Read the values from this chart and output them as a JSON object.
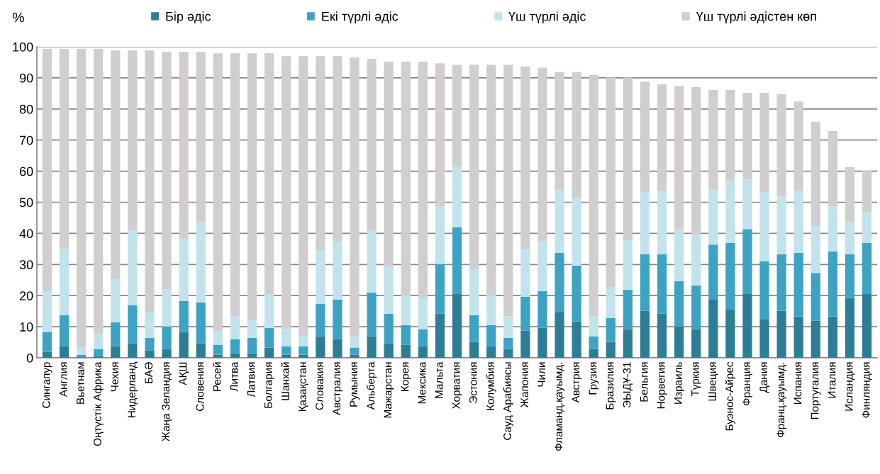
{
  "chart_data": {
    "type": "bar",
    "stacked": true,
    "ylabel": "%",
    "categories": [
      "Сингапур",
      "Англия",
      "Вьетнам",
      "Оңтүстік Африка",
      "Чехия",
      "Нидерланд",
      "БАӘ",
      "Жаңа Зеландия",
      "АҚШ",
      "Словения",
      "Ресей",
      "Литва",
      "Латвия",
      "Болгария",
      "Шанхай",
      "Қазақстан",
      "Словакия",
      "Австралия",
      "Румыния",
      "Альберта",
      "Мажарстан",
      "Корея",
      "Мексика",
      "Мальта",
      "Хорватия",
      "Эстония",
      "Колумбия",
      "Сауд Арабиясы",
      "Жапония",
      "Чили",
      "Фламанд.қауымд.",
      "Австрия",
      "Грузия",
      "Бразилия",
      "ЭЫДҰ-31",
      "Бельгия",
      "Норвегия",
      "Израиль",
      "Түркия",
      "Швеция",
      "Буэнос-Айрес",
      "Франция",
      "Дания",
      "Франц.қауымд.",
      "Испания",
      "Португалия",
      "Италия",
      "Исландия",
      "Финляндия"
    ],
    "series": [
      {
        "name": "Бір әдіс",
        "color": "#2e7d96",
        "values": [
          1.9,
          3.7,
          0.2,
          0.5,
          3.7,
          4.6,
          2.3,
          2.8,
          8.3,
          4.6,
          1.0,
          1.4,
          1.4,
          3.3,
          1.0,
          1.0,
          6.9,
          6.0,
          1.0,
          6.9,
          4.6,
          4.2,
          3.7,
          14.2,
          20.5,
          5.1,
          3.7,
          2.8,
          8.7,
          9.6,
          14.6,
          11.4,
          2.8,
          5.1,
          9.2,
          15.1,
          14.2,
          10.1,
          9.2,
          18.7,
          15.5,
          20.5,
          12.3,
          15.1,
          13.3,
          11.9,
          13.3,
          19.2,
          20.5
        ]
      },
      {
        "name": "Екі түрлі әдіс",
        "color": "#3ca3c4",
        "values": [
          6.4,
          10.0,
          0.8,
          2.3,
          7.7,
          12.3,
          4.1,
          7.3,
          10.0,
          13.2,
          3.2,
          4.6,
          5.0,
          6.3,
          2.7,
          2.7,
          10.4,
          12.7,
          2.3,
          14.1,
          9.6,
          6.3,
          5.5,
          15.9,
          21.4,
          8.6,
          6.8,
          3.6,
          10.9,
          11.8,
          19.1,
          18.2,
          4.1,
          7.7,
          12.7,
          18.2,
          19.1,
          14.5,
          14.1,
          17.7,
          21.4,
          20.9,
          18.7,
          18.2,
          20.4,
          15.4,
          20.9,
          14.1,
          16.4
        ]
      },
      {
        "name": "Үш түрлі әдіс",
        "color": "#c2e3ec",
        "values": [
          13.1,
          21.4,
          2.3,
          5.0,
          13.7,
          24.1,
          8.2,
          11.8,
          20.0,
          25.9,
          4.5,
          7.3,
          5.5,
          10.9,
          5.5,
          3.6,
          17.3,
          18.6,
          3.6,
          20.0,
          15.0,
          9.6,
          10.0,
          18.6,
          19.5,
          15.0,
          9.6,
          6.9,
          15.5,
          15.9,
          20.5,
          21.8,
          6.4,
          10.0,
          15.9,
          20.0,
          20.4,
          16.8,
          16.3,
          17.8,
          20.0,
          15.9,
          22.3,
          18.6,
          20.0,
          15.0,
          14.5,
          10.4,
          10.0
        ]
      },
      {
        "name": "Үш түрлі әдістен көп",
        "color": "#d0cecf",
        "values": [
          77.9,
          64.2,
          96.0,
          91.5,
          73.7,
          57.8,
          84.2,
          76.5,
          60.1,
          54.7,
          89.2,
          84.6,
          86.0,
          77.4,
          87.8,
          89.7,
          62.4,
          59.7,
          89.6,
          55.1,
          66.0,
          75.1,
          76.0,
          46.0,
          32.8,
          65.5,
          74.1,
          80.9,
          58.6,
          56.0,
          37.7,
          40.5,
          77.7,
          67.3,
          52.3,
          35.5,
          34.2,
          46.0,
          47.4,
          31.9,
          29.2,
          27.9,
          31.9,
          32.9,
          28.7,
          33.6,
          24.2,
          17.6,
          13.2
        ]
      }
    ],
    "ylim": [
      0,
      100
    ],
    "yticks": [
      0,
      10,
      20,
      30,
      40,
      50,
      60,
      70,
      80,
      90,
      100
    ],
    "grid": "y",
    "legend": "top"
  }
}
